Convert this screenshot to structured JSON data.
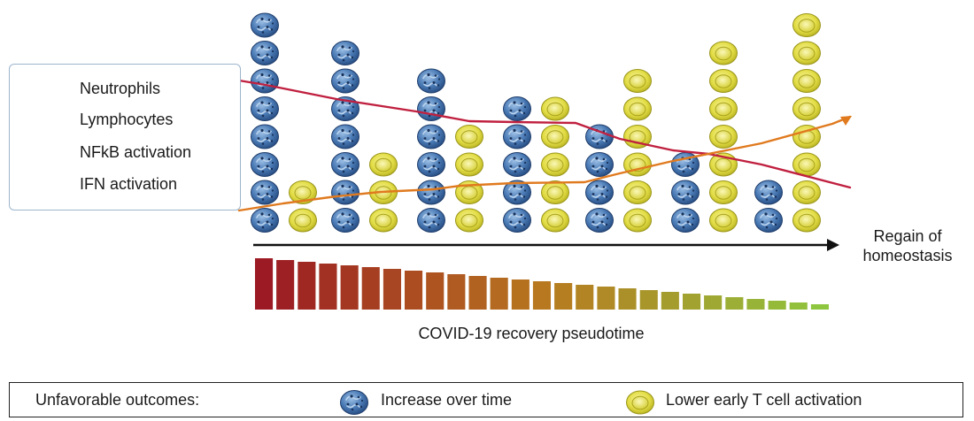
{
  "legend": {
    "neutrophils": "Neutrophils",
    "lymphocytes": "Lymphocytes",
    "nfkb": "NFkB activation",
    "ifn": "IFN activation"
  },
  "axis": {
    "endpoint_line1": "Regain of",
    "endpoint_line2": "homeostasis",
    "pseudotime_label": "COVID-19 recovery pseudotime"
  },
  "columns": [
    {
      "neutrophils": 8,
      "lymphocytes": 2
    },
    {
      "neutrophils": 7,
      "lymphocytes": 3
    },
    {
      "neutrophils": 6,
      "lymphocytes": 4
    },
    {
      "neutrophils": 5,
      "lymphocytes": 5
    },
    {
      "neutrophils": 4,
      "lymphocytes": 6
    },
    {
      "neutrophils": 3,
      "lymphocytes": 7
    },
    {
      "neutrophils": 2,
      "lymphocytes": 8
    }
  ],
  "pseudotime_bars": {
    "count": 27,
    "start_color": "#9b1a24",
    "end_color": "#8fc63f"
  },
  "colors": {
    "nfkb_line": "#c0203f",
    "ifn_line": "#e07a1f",
    "neutrophil": "#3f6fa8",
    "lymphocyte": "#e0dd4a",
    "legend_border": "#9db5cc"
  },
  "bottom_legend": {
    "title": "Unfavorable outcomes:",
    "neutrophil_text": "Increase over time",
    "lymphocyte_text": "Lower early T cell activation"
  }
}
